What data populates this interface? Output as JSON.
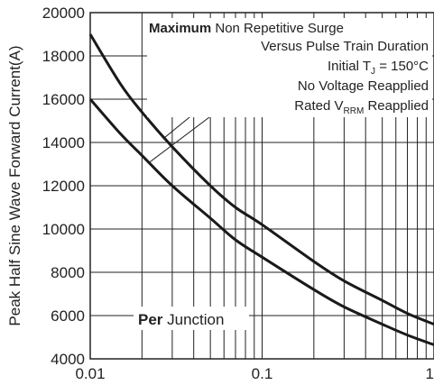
{
  "chart_data": {
    "type": "line",
    "xlabel": "",
    "ylabel": "Peak Half Sine Wave Forward Current(A)",
    "x_scale": "log",
    "xlim": [
      0.01,
      1
    ],
    "ylim": [
      4000,
      20000
    ],
    "x_tick_labels": [
      "0.01",
      "0.1",
      "1"
    ],
    "y_ticks": [
      4000,
      6000,
      8000,
      10000,
      12000,
      14000,
      16000,
      18000,
      20000
    ],
    "y_tick_labels": [
      "4000",
      "6000",
      "8000",
      "10000",
      "12000",
      "14000",
      "16000",
      "18000",
      "20000"
    ],
    "grid": true,
    "annotation": {
      "line1_bold": "Maximum",
      "line1_rest": " Non Repetitive Surge",
      "line2": "Versus Pulse Train Duration",
      "line3_pre": "Initial T",
      "line3_sub": "J",
      "line3_post": " = 150°C",
      "line4": "No Voltage Reapplied",
      "line5_pre": "Rated V",
      "line5_sub": "RRM",
      "line5_post": " Reapplied"
    },
    "junction_label_bold": "Per",
    "junction_label_rest": " Junction",
    "series": [
      {
        "x": [
          0.01,
          0.015,
          0.02,
          0.03,
          0.05,
          0.07,
          0.1,
          0.2,
          0.3,
          0.5,
          0.7,
          1.0
        ],
        "y": [
          19000,
          16700,
          15400,
          13800,
          12000,
          11000,
          10200,
          8500,
          7600,
          6700,
          6100,
          5600
        ]
      },
      {
        "x": [
          0.01,
          0.015,
          0.02,
          0.03,
          0.05,
          0.07,
          0.1,
          0.2,
          0.3,
          0.5,
          0.7,
          1.0
        ],
        "y": [
          16000,
          14400,
          13400,
          12000,
          10500,
          9500,
          8700,
          7200,
          6400,
          5600,
          5100,
          4650
        ]
      }
    ]
  }
}
